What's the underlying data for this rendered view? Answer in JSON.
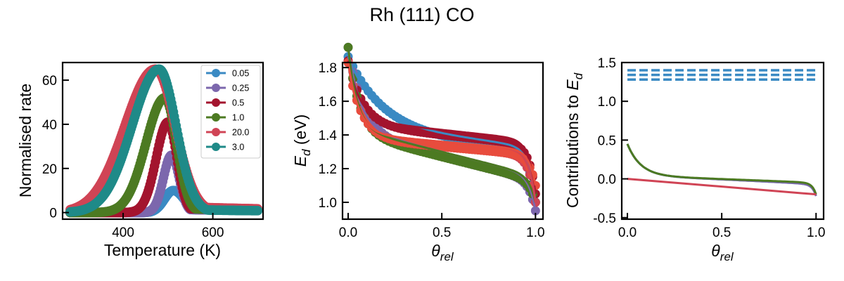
{
  "figure": {
    "title": "Rh (111) CO"
  },
  "chart_data": [
    {
      "type": "scatter",
      "xlabel": "Temperature (K)",
      "ylabel": "Normalised rate",
      "xlim": [
        265,
        712
      ],
      "ylim": [
        -3,
        68
      ],
      "xticks": [
        400,
        600
      ],
      "yticks": [
        0,
        20,
        40,
        60
      ],
      "grid": false,
      "legend_position": "top-right",
      "series": [
        {
          "name": "0.05",
          "color": "#3a8ac3",
          "peak_x": 512,
          "peak_y": 10,
          "width_left": 20,
          "width_right": 24,
          "tail": 1.5
        },
        {
          "name": "0.25",
          "color": "#7c67ad",
          "peak_x": 508,
          "peak_y": 26,
          "width_left": 18,
          "width_right": 17,
          "tail": 1.5
        },
        {
          "name": "0.5",
          "color": "#a3142e",
          "peak_x": 500,
          "peak_y": 41,
          "width_left": 26,
          "width_right": 20,
          "tail": 2.0
        },
        {
          "name": "1.0",
          "color": "#4c7a22",
          "peak_x": 493,
          "peak_y": 52,
          "width_left": 42,
          "width_right": 26,
          "tail": 2.0
        },
        {
          "name": "20.0",
          "color": "#d04455",
          "peak_x": 472,
          "peak_y": 65,
          "width_left": 68,
          "width_right": 44,
          "tail": 3.0
        },
        {
          "name": "3.0",
          "color": "#1f8a88",
          "peak_x": 480,
          "peak_y": 65,
          "width_left": 60,
          "width_right": 38,
          "tail": 1.5
        }
      ]
    },
    {
      "type": "scatter",
      "xlabel": "θrel",
      "ylabel": "Ed (eV)",
      "xlim": [
        -0.03,
        1.04
      ],
      "ylim": [
        0.9,
        1.83
      ],
      "xticks": [
        0.0,
        0.5,
        1.0
      ],
      "yticks": [
        1.0,
        1.2,
        1.4,
        1.6,
        1.8
      ],
      "grid": false,
      "series": [
        {
          "name": "0.05",
          "color": "#3a8ac3",
          "start": 1.79,
          "plateau": 1.37,
          "slope": -0.15,
          "drop_end": 1.0,
          "knee": 0.18
        },
        {
          "name": "0.25",
          "color": "#7c67ad",
          "start": 1.78,
          "plateau": 1.27,
          "slope": -0.28,
          "drop_end": 0.95,
          "knee": 0.08
        },
        {
          "name": "0.5",
          "color": "#a3142e",
          "start": 1.78,
          "plateau": 1.4,
          "slope": -0.12,
          "drop_end": 1.05,
          "knee": 0.08
        },
        {
          "name": "1.0",
          "color": "#4c7a22",
          "start": 1.78,
          "plateau": 1.27,
          "slope": -0.28,
          "drop_end": 1.0,
          "knee": 0.06
        },
        {
          "name": "20.0",
          "color": "#d04455",
          "start": 1.78,
          "plateau": 1.33,
          "slope": -0.1,
          "drop_end": 1.0,
          "knee": 0.07
        },
        {
          "name": "3.0",
          "color": "#e84c3d",
          "start": 1.78,
          "plateau": 1.33,
          "slope": -0.1,
          "drop_end": 1.1,
          "knee": 0.07
        }
      ]
    },
    {
      "type": "line",
      "xlabel": "θrel",
      "ylabel": "Contributions to Ed",
      "xlim": [
        -0.03,
        1.04
      ],
      "ylim": [
        -0.52,
        1.5
      ],
      "xticks": [
        0.0,
        0.5,
        1.0
      ],
      "yticks": [
        -0.5,
        0.0,
        0.5,
        1.0,
        1.5
      ],
      "grid": false,
      "dashed_lines": {
        "color": "#3a8ac3",
        "values": [
          1.28,
          1.34,
          1.4
        ]
      },
      "decay_curves": [
        {
          "color": "#3a8ac3",
          "start": 0.45,
          "end": -0.22
        },
        {
          "color": "#7c67ad",
          "start": 0.45,
          "end": -0.22
        },
        {
          "color": "#4c7a22",
          "start": 0.45,
          "end": -0.2
        }
      ],
      "linear_line": {
        "color": "#d04455",
        "start": 0.0,
        "end": -0.2
      }
    }
  ]
}
